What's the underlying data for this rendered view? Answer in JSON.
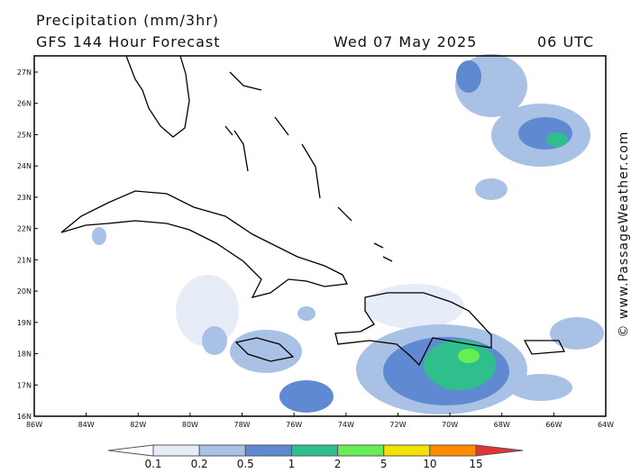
{
  "header": {
    "title": "Precipitation (mm/3hr)",
    "subtitle": "GFS 144 Hour Forecast",
    "date": "Wed 07 May 2025",
    "time": "06 UTC"
  },
  "credit": "© www.PassageWeather.com",
  "map": {
    "lon_labels": [
      "86W",
      "84W",
      "82W",
      "80W",
      "78W",
      "76W",
      "74W",
      "72W",
      "70W",
      "68W",
      "66W",
      "64W"
    ],
    "lat_labels": [
      "16N",
      "17N",
      "18N",
      "19N",
      "20N",
      "21N",
      "22N",
      "23N",
      "24N",
      "25N",
      "26N",
      "27N"
    ]
  },
  "legend": {
    "levels": [
      "0.1",
      "0.2",
      "0.5",
      "1",
      "2",
      "5",
      "10",
      "15"
    ],
    "colors": [
      "#ffffff",
      "#e6edf8",
      "#a9c1e4",
      "#5f8ad2",
      "#2fbf8c",
      "#66ee55",
      "#f2e200",
      "#ff8a00",
      "#e23434"
    ]
  }
}
